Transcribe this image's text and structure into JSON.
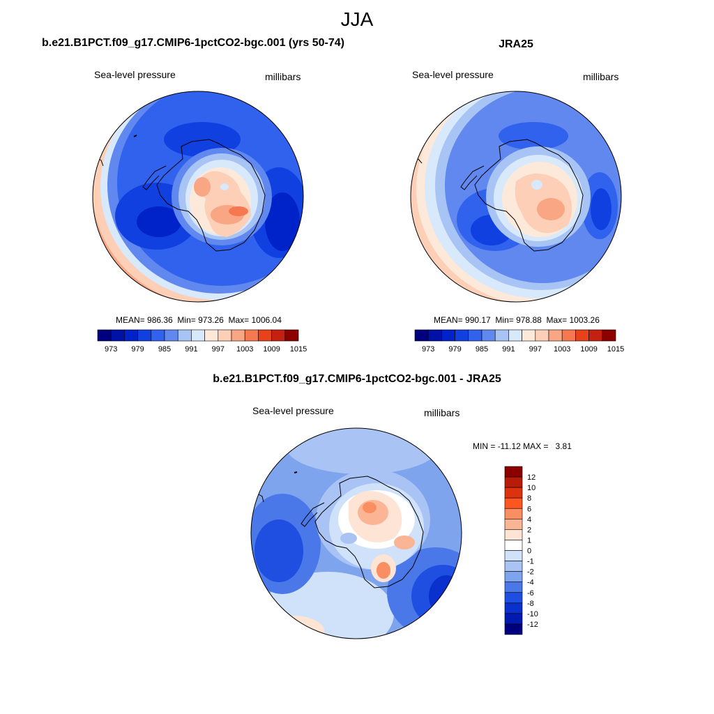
{
  "page": {
    "season": "JJA"
  },
  "panels": {
    "model": {
      "title": "b.e21.B1PCT.f09_g17.CMIP6-1pctCO2-bgc.001 (yrs 50-74)",
      "variable": "Sea-level pressure",
      "units": "millibars",
      "stats": {
        "mean_label": "MEAN=",
        "mean": "986.36",
        "min_label": "Min=",
        "min": "973.26",
        "max_label": "Max=",
        "max": "1006.04"
      }
    },
    "obs": {
      "title": "JRA25",
      "variable": "Sea-level pressure",
      "units": "millibars",
      "stats": {
        "mean_label": "MEAN=",
        "mean": "990.17",
        "min_label": "Min=",
        "min": "978.88",
        "max_label": "Max=",
        "max": "1003.26"
      }
    },
    "diff": {
      "title": "b.e21.B1PCT.f09_g17.CMIP6-1pctCO2-bgc.001 - JRA25",
      "variable": "Sea-level pressure",
      "units": "millibars",
      "stats": {
        "min_label": "MIN =",
        "min": "-11.12",
        "max_label": "MAX =",
        "max": "3.81"
      }
    }
  },
  "colorbars": {
    "absolute": {
      "orientation": "horizontal",
      "colors": [
        "#00007f",
        "#0011a8",
        "#0022c9",
        "#1040e0",
        "#3062ee",
        "#6088ef",
        "#a8c4f4",
        "#d8e9fb",
        "#fde9da",
        "#fccfb6",
        "#f8a683",
        "#f57850",
        "#e8421a",
        "#c42110",
        "#8c0000"
      ],
      "tick_labels": [
        "973",
        "979",
        "985",
        "991",
        "997",
        "1003",
        "1009",
        "1015"
      ]
    },
    "difference": {
      "orientation": "vertical",
      "colors": [
        "#8c0000",
        "#b81c08",
        "#dd3210",
        "#ff5520",
        "#f88e62",
        "#fbb494",
        "#fde4d4",
        "#ffffff",
        "#cfe2fa",
        "#a9c3f4",
        "#7ea4ee",
        "#4a78e8",
        "#1f4fe0",
        "#0a30cd",
        "#011bb0",
        "#00007f"
      ],
      "tick_labels": [
        "12",
        "10",
        "8",
        "6",
        "4",
        "2",
        "1",
        "0",
        "-1",
        "-2",
        "-4",
        "-6",
        "-8",
        "-10",
        "-12"
      ]
    }
  },
  "chart_data": [
    {
      "type": "heatmap",
      "title": "b.e21.B1PCT.f09_g17.CMIP6-1pctCO2-bgc.001 (yrs 50-74)",
      "variable": "Sea-level pressure",
      "units": "millibars",
      "projection": "south polar stereographic",
      "levels": [
        973,
        976,
        979,
        982,
        985,
        988,
        991,
        994,
        997,
        1000,
        1003,
        1006,
        1009,
        1012,
        1015
      ],
      "mean": 986.36,
      "min": 973.26,
      "max": 1006.04
    },
    {
      "type": "heatmap",
      "title": "JRA25",
      "variable": "Sea-level pressure",
      "units": "millibars",
      "projection": "south polar stereographic",
      "levels": [
        973,
        976,
        979,
        982,
        985,
        988,
        991,
        994,
        997,
        1000,
        1003,
        1006,
        1009,
        1012,
        1015
      ],
      "mean": 990.17,
      "min": 978.88,
      "max": 1003.26
    },
    {
      "type": "heatmap",
      "title": "b.e21.B1PCT.f09_g17.CMIP6-1pctCO2-bgc.001 - JRA25",
      "variable": "Sea-level pressure",
      "units": "millibars",
      "projection": "south polar stereographic",
      "levels": [
        -12,
        -10,
        -8,
        -6,
        -4,
        -2,
        -1,
        0,
        1,
        2,
        4,
        6,
        8,
        10,
        12
      ],
      "min": -11.12,
      "max": 3.81
    }
  ]
}
